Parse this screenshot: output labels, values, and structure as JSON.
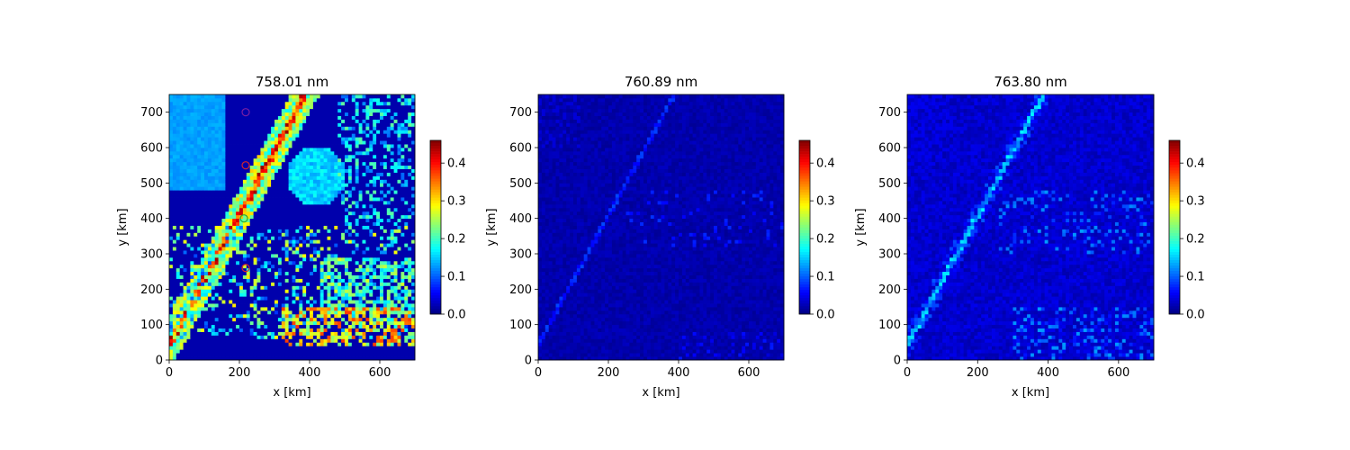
{
  "chart_data": [
    {
      "type": "heatmap",
      "title": "758.01 nm",
      "xlabel": "x [km]",
      "ylabel": "y [km]",
      "xlim": [
        0,
        700
      ],
      "ylim": [
        0,
        750
      ],
      "xticks": [
        0,
        200,
        400,
        600
      ],
      "yticks": [
        0,
        100,
        200,
        300,
        400,
        500,
        600,
        700
      ],
      "colorbar": {
        "min": 0.0,
        "max": 0.46,
        "ticks": [
          "0.0",
          "0.1",
          "0.2",
          "0.3",
          "0.4"
        ],
        "colormap": "jet"
      },
      "grid": false,
      "markers": [
        {
          "x": 218,
          "y": 700,
          "color": "#7a1fa2"
        },
        {
          "x": 218,
          "y": 550,
          "color": "#d62728"
        },
        {
          "x": 213,
          "y": 400,
          "color": "#2ca02c"
        },
        {
          "x": 218,
          "y": 260,
          "color": "#d62728"
        }
      ]
    },
    {
      "type": "heatmap",
      "title": "760.89 nm",
      "xlabel": "x [km]",
      "ylabel": "y [km]",
      "xlim": [
        0,
        700
      ],
      "ylim": [
        0,
        750
      ],
      "xticks": [
        0,
        200,
        400,
        600
      ],
      "yticks": [
        0,
        100,
        200,
        300,
        400,
        500,
        600,
        700
      ],
      "colorbar": {
        "min": 0.0,
        "max": 0.46,
        "ticks": [
          "0.0",
          "0.1",
          "0.2",
          "0.3",
          "0.4"
        ],
        "colormap": "jet"
      },
      "grid": false
    },
    {
      "type": "heatmap",
      "title": "763.80 nm",
      "xlabel": "x [km]",
      "ylabel": "y [km]",
      "xlim": [
        0,
        700
      ],
      "ylim": [
        0,
        750
      ],
      "xticks": [
        0,
        200,
        400,
        600
      ],
      "yticks": [
        0,
        100,
        200,
        300,
        400,
        500,
        600,
        700
      ],
      "colorbar": {
        "min": 0.0,
        "max": 0.46,
        "ticks": [
          "0.0",
          "0.1",
          "0.2",
          "0.3",
          "0.4"
        ],
        "colormap": "jet"
      },
      "grid": false
    }
  ]
}
